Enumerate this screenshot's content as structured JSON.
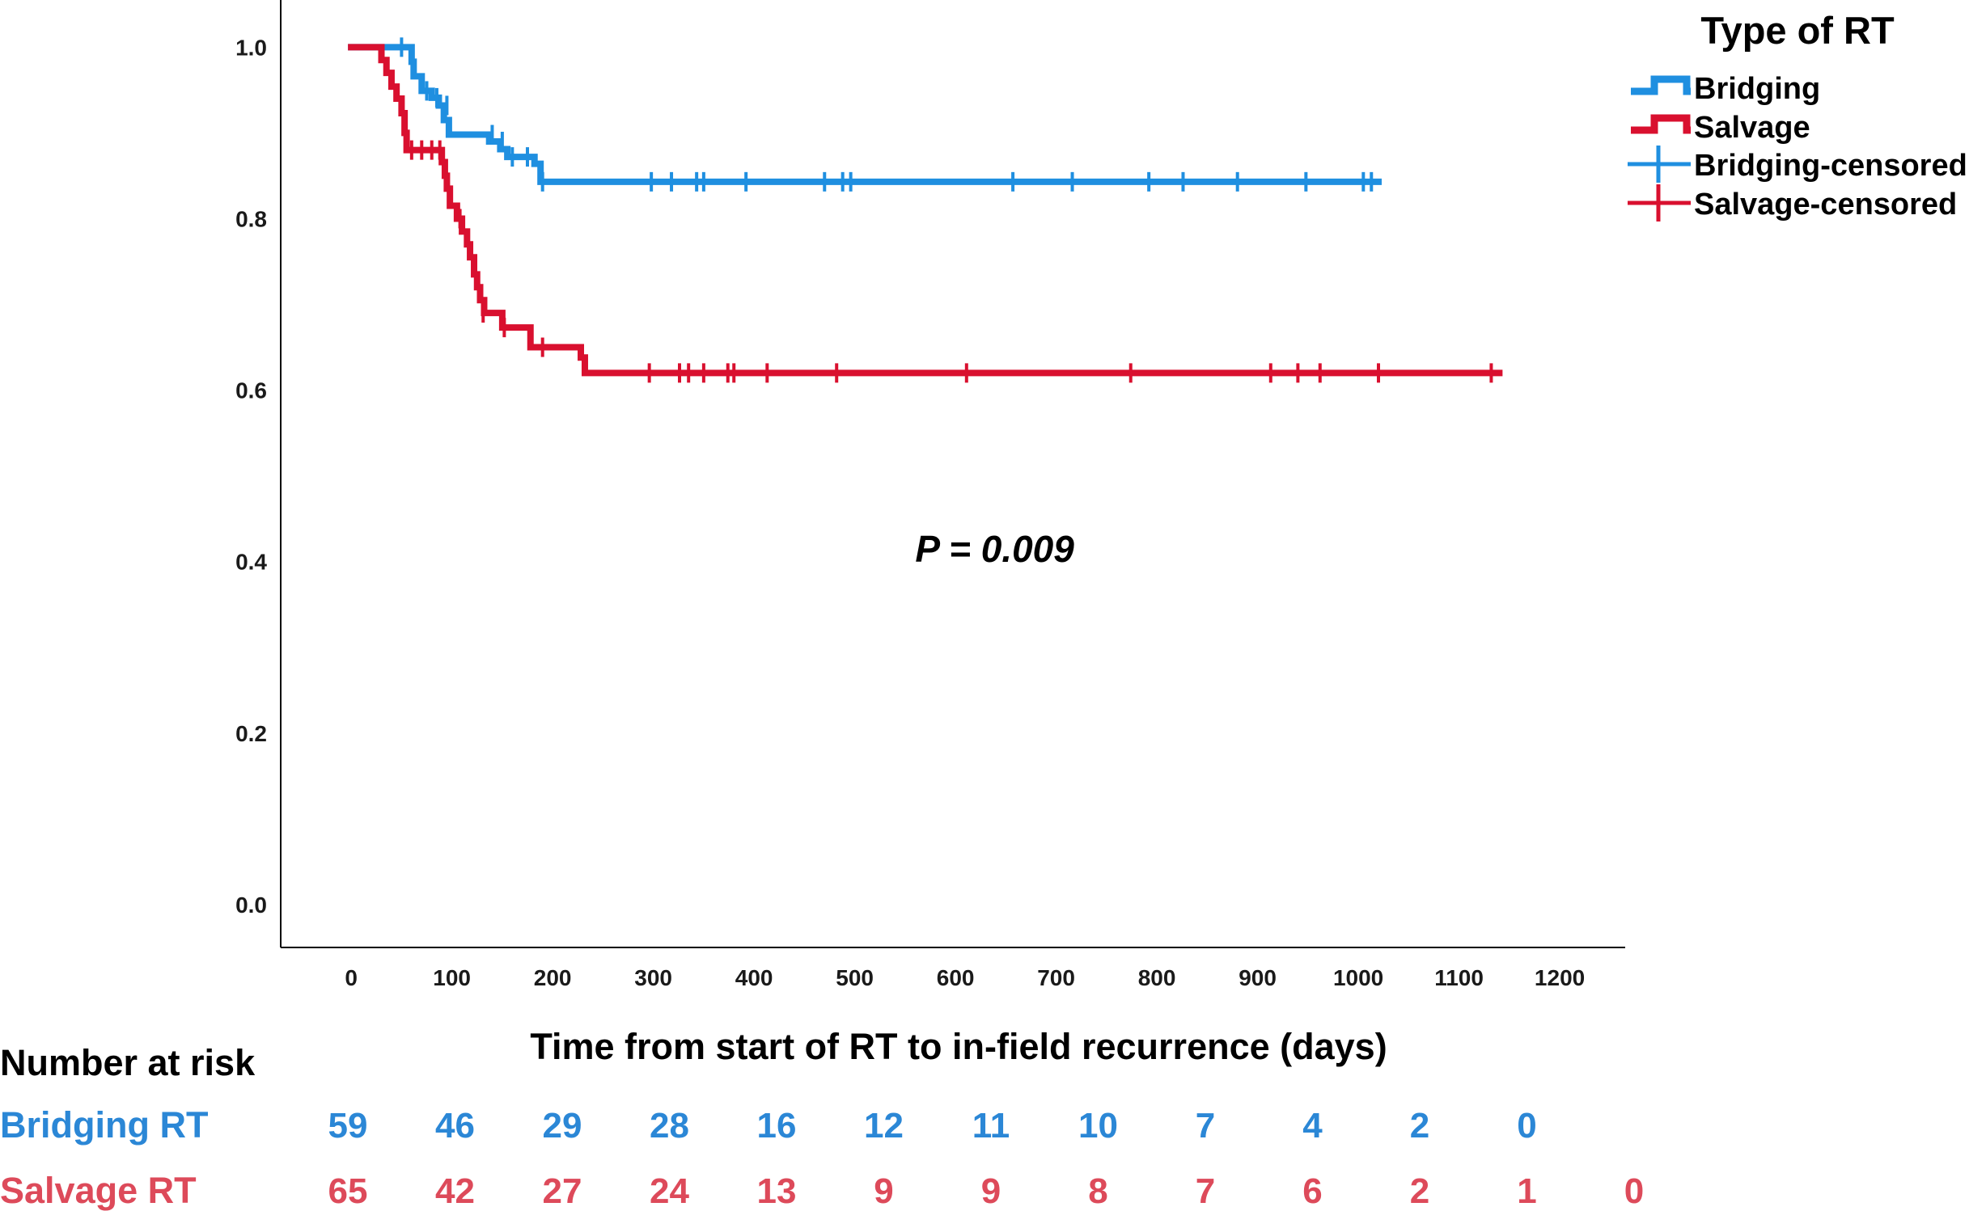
{
  "chart_data": {
    "type": "line",
    "subtype": "kaplan-meier",
    "xlabel": "Time from start of RT to in-field recurrence (days)",
    "ylabel": "",
    "xlim": [
      -70,
      1265
    ],
    "ylim": [
      -0.05,
      1.055
    ],
    "x_ticks": [
      0,
      100,
      200,
      300,
      400,
      500,
      600,
      700,
      800,
      900,
      1000,
      1100,
      1200
    ],
    "y_ticks": [
      0.0,
      0.2,
      0.4,
      0.6,
      0.8,
      1.0
    ],
    "y_tick_labels": [
      "0.0",
      "0.2",
      "0.4",
      "0.6",
      "0.8",
      "1.0"
    ],
    "annotation": "P = 0.009",
    "annotation_pos": {
      "x": 560,
      "y": 0.415
    },
    "legend": {
      "title": "Type of RT",
      "position": "top-right",
      "entries": [
        "Bridging",
        "Salvage",
        "Bridging-censored",
        "Salvage-censored"
      ]
    },
    "series": [
      {
        "name": "Bridging",
        "color": "#1f8fe0",
        "steps": [
          [
            0,
            1.0
          ],
          [
            57,
            1.0
          ],
          [
            60,
            0.983
          ],
          [
            62,
            0.966
          ],
          [
            70,
            0.949
          ],
          [
            80,
            0.941
          ],
          [
            87,
            0.932
          ],
          [
            92,
            0.915
          ],
          [
            97,
            0.898
          ],
          [
            137,
            0.89
          ],
          [
            148,
            0.881
          ],
          [
            155,
            0.872
          ],
          [
            182,
            0.864
          ],
          [
            188,
            0.843
          ],
          [
            1020,
            0.843
          ]
        ],
        "censored": [
          [
            50,
            1.0
          ],
          [
            75,
            0.949
          ],
          [
            85,
            0.941
          ],
          [
            95,
            0.932
          ],
          [
            140,
            0.898
          ],
          [
            150,
            0.89
          ],
          [
            160,
            0.872
          ],
          [
            175,
            0.872
          ],
          [
            190,
            0.843
          ],
          [
            298,
            0.843
          ],
          [
            318,
            0.843
          ],
          [
            343,
            0.843
          ],
          [
            350,
            0.843
          ],
          [
            392,
            0.843
          ],
          [
            470,
            0.843
          ],
          [
            488,
            0.843
          ],
          [
            496,
            0.843
          ],
          [
            657,
            0.843
          ],
          [
            716,
            0.843
          ],
          [
            792,
            0.843
          ],
          [
            826,
            0.843
          ],
          [
            880,
            0.843
          ],
          [
            948,
            0.843
          ],
          [
            1005,
            0.843
          ],
          [
            1013,
            0.843
          ]
        ]
      },
      {
        "name": "Salvage",
        "color": "#d9102f",
        "steps": [
          [
            0,
            1.0
          ],
          [
            27,
            1.0
          ],
          [
            30,
            0.985
          ],
          [
            35,
            0.97
          ],
          [
            40,
            0.954
          ],
          [
            45,
            0.94
          ],
          [
            50,
            0.923
          ],
          [
            53,
            0.9
          ],
          [
            55,
            0.88
          ],
          [
            88,
            0.88
          ],
          [
            90,
            0.866
          ],
          [
            93,
            0.85
          ],
          [
            95,
            0.835
          ],
          [
            98,
            0.815
          ],
          [
            105,
            0.8
          ],
          [
            110,
            0.785
          ],
          [
            115,
            0.77
          ],
          [
            118,
            0.755
          ],
          [
            122,
            0.735
          ],
          [
            125,
            0.72
          ],
          [
            128,
            0.705
          ],
          [
            132,
            0.69
          ],
          [
            142,
            0.69
          ],
          [
            150,
            0.673
          ],
          [
            172,
            0.673
          ],
          [
            178,
            0.65
          ],
          [
            225,
            0.65
          ],
          [
            228,
            0.638
          ],
          [
            232,
            0.62
          ],
          [
            1140,
            0.62
          ]
        ],
        "censored": [
          [
            60,
            0.88
          ],
          [
            70,
            0.88
          ],
          [
            80,
            0.88
          ],
          [
            88,
            0.88
          ],
          [
            108,
            0.8
          ],
          [
            131,
            0.69
          ],
          [
            152,
            0.673
          ],
          [
            190,
            0.65
          ],
          [
            296,
            0.62
          ],
          [
            326,
            0.62
          ],
          [
            335,
            0.62
          ],
          [
            350,
            0.62
          ],
          [
            374,
            0.62
          ],
          [
            380,
            0.62
          ],
          [
            413,
            0.62
          ],
          [
            482,
            0.62
          ],
          [
            611,
            0.62
          ],
          [
            774,
            0.62
          ],
          [
            913,
            0.62
          ],
          [
            940,
            0.62
          ],
          [
            962,
            0.62
          ],
          [
            1020,
            0.62
          ],
          [
            1132,
            0.62
          ]
        ]
      }
    ],
    "number_at_risk": {
      "title": "Number at risk",
      "rows": [
        {
          "label": "Bridging RT",
          "color": "#2b87d6",
          "values": [
            "59",
            "46",
            "29",
            "28",
            "16",
            "12",
            "11",
            "10",
            "7",
            "4",
            "2",
            "0"
          ]
        },
        {
          "label": "Salvage RT",
          "color": "#dd4a5a",
          "values": [
            "65",
            "42",
            "27",
            "24",
            "13",
            "9",
            "9",
            "8",
            "7",
            "6",
            "2",
            "1",
            "0"
          ]
        }
      ]
    }
  }
}
